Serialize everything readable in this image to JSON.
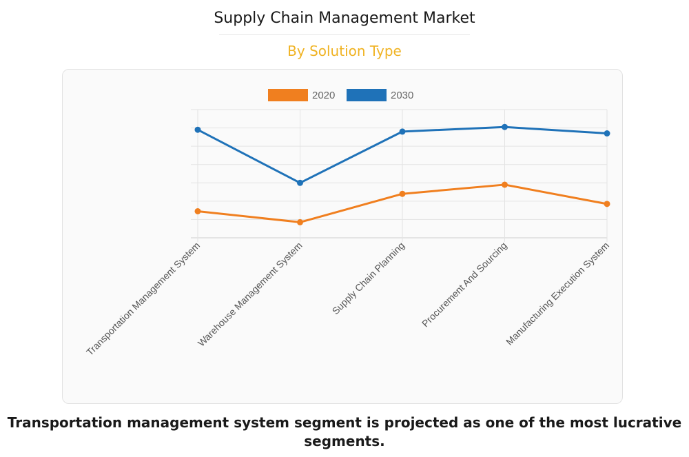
{
  "header": {
    "title": "Supply Chain Management Market",
    "subtitle": "By Solution Type"
  },
  "caption": "Transportation management system segment is projected as one of the most lucrative segments.",
  "colors": {
    "subtitle": "#f0b323",
    "series_2020": "#f07f1f",
    "series_2030": "#1f72b8"
  },
  "chart_data": {
    "type": "line",
    "categories": [
      "Transportation Management System",
      "Warehouse Management System",
      "Supply Chain Planning",
      "Procurement And Sourcing",
      "Manufacturing Execution System"
    ],
    "series": [
      {
        "name": "2020",
        "color": "#f07f1f",
        "values": [
          1.45,
          0.85,
          2.4,
          2.9,
          1.85
        ]
      },
      {
        "name": "2030",
        "color": "#1f72b8",
        "values": [
          5.9,
          3.0,
          5.8,
          6.05,
          5.7
        ]
      }
    ],
    "ylim": [
      0,
      7
    ],
    "y_ticks_visible": false,
    "grid": true,
    "legend_position": "top-center"
  }
}
